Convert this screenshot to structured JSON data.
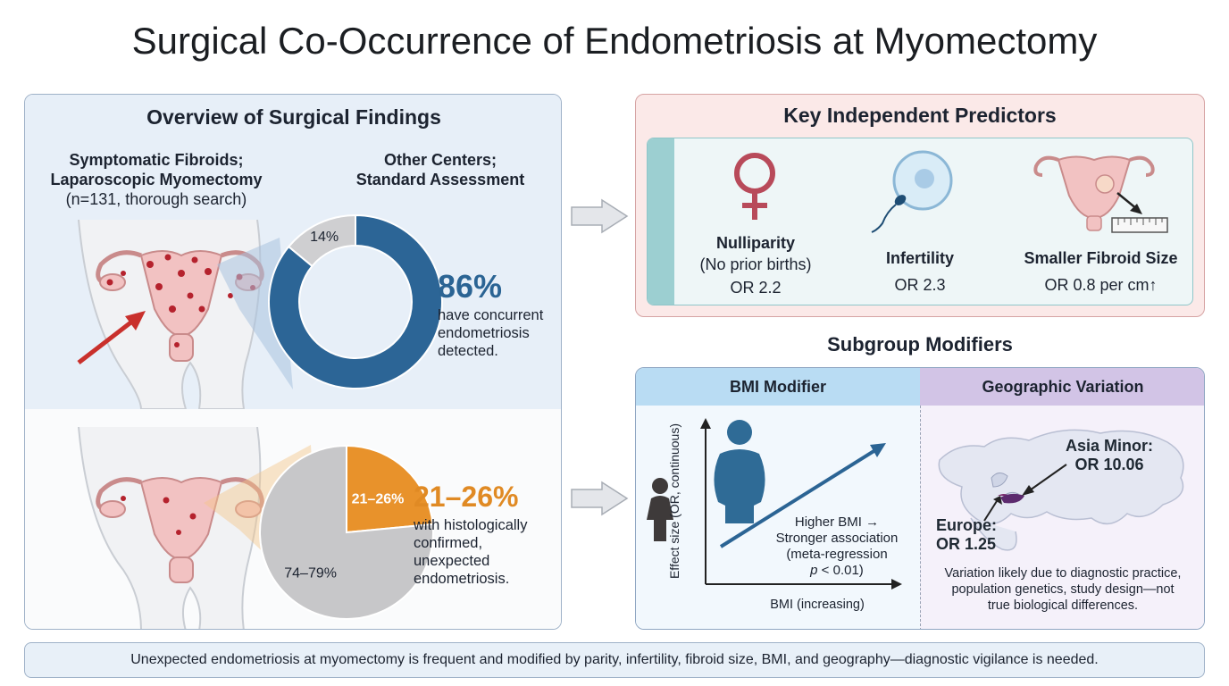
{
  "title": "Surgical Co-Occurrence of Endometriosis at Myomectomy",
  "overview": {
    "title": "Overview of Surgical Findings",
    "group_a": {
      "line1": "Symptomatic Fibroids;",
      "line2": "Laparoscopic Myomectomy",
      "line3": "(n=131, thorough search)"
    },
    "group_b": {
      "line1": "Other Centers;",
      "line2": "Standard Assessment"
    },
    "finding_a": {
      "stat": "86%",
      "desc1": "have concurrent",
      "desc2": "endometriosis",
      "desc3": "detected."
    },
    "finding_b": {
      "stat": "21–26%",
      "desc1": "with histologically",
      "desc2": "confirmed, unexpected",
      "desc3": "endometriosis."
    }
  },
  "predictors": {
    "title": "Key Independent Predictors",
    "items": [
      {
        "name": "Nulliparity",
        "sub": "(No prior births)",
        "value": "OR 2.2",
        "icon": "female-symbol-icon"
      },
      {
        "name": "Infertility",
        "value": "OR 2.3",
        "icon": "egg-sperm-icon"
      },
      {
        "name": "Smaller Fibroid Size",
        "value": "OR 0.8 per cm↑",
        "icon": "uterus-ruler-icon"
      }
    ]
  },
  "subgroup": {
    "title": "Subgroup Modifiers",
    "bmi": {
      "title": "BMI Modifier",
      "ylabel": "Effect size (OR, continuous)",
      "xlabel": "BMI (increasing)",
      "note1": "Higher BMI →",
      "note2": "Stronger association",
      "note3": "(meta-regression",
      "note4_italic": "p",
      "note4_rest": " < 0.01)"
    },
    "geo": {
      "title": "Geographic Variation",
      "asia_label": "Asia Minor:",
      "asia_value": "OR 10.06",
      "europe_label": "Europe:",
      "europe_value": "OR 1.25",
      "note1": "Variation likely due to diagnostic practice,",
      "note2": "population genetics, study design—not",
      "note3": "true biological differences."
    }
  },
  "chart_data": [
    {
      "type": "pie",
      "style": "donut",
      "categories": [
        "have concurrent endometriosis detected",
        "no endometriosis"
      ],
      "values": [
        86,
        14
      ],
      "labels": [
        "",
        "14%"
      ],
      "colors": [
        "#2c6596",
        "#cfcfd1"
      ]
    },
    {
      "type": "pie",
      "categories": [
        "histologically confirmed, unexpected endometriosis",
        "no endometriosis"
      ],
      "values": [
        23.5,
        76.5
      ],
      "labels": [
        "21–26%",
        "74–79%"
      ],
      "colors": [
        "#e8922b",
        "#c7c7c9"
      ]
    }
  ],
  "footer": "Unexpected endometriosis at myomectomy is frequent and modified by parity, infertility, fibroid size, BMI, and geography—diagnostic vigilance is needed."
}
